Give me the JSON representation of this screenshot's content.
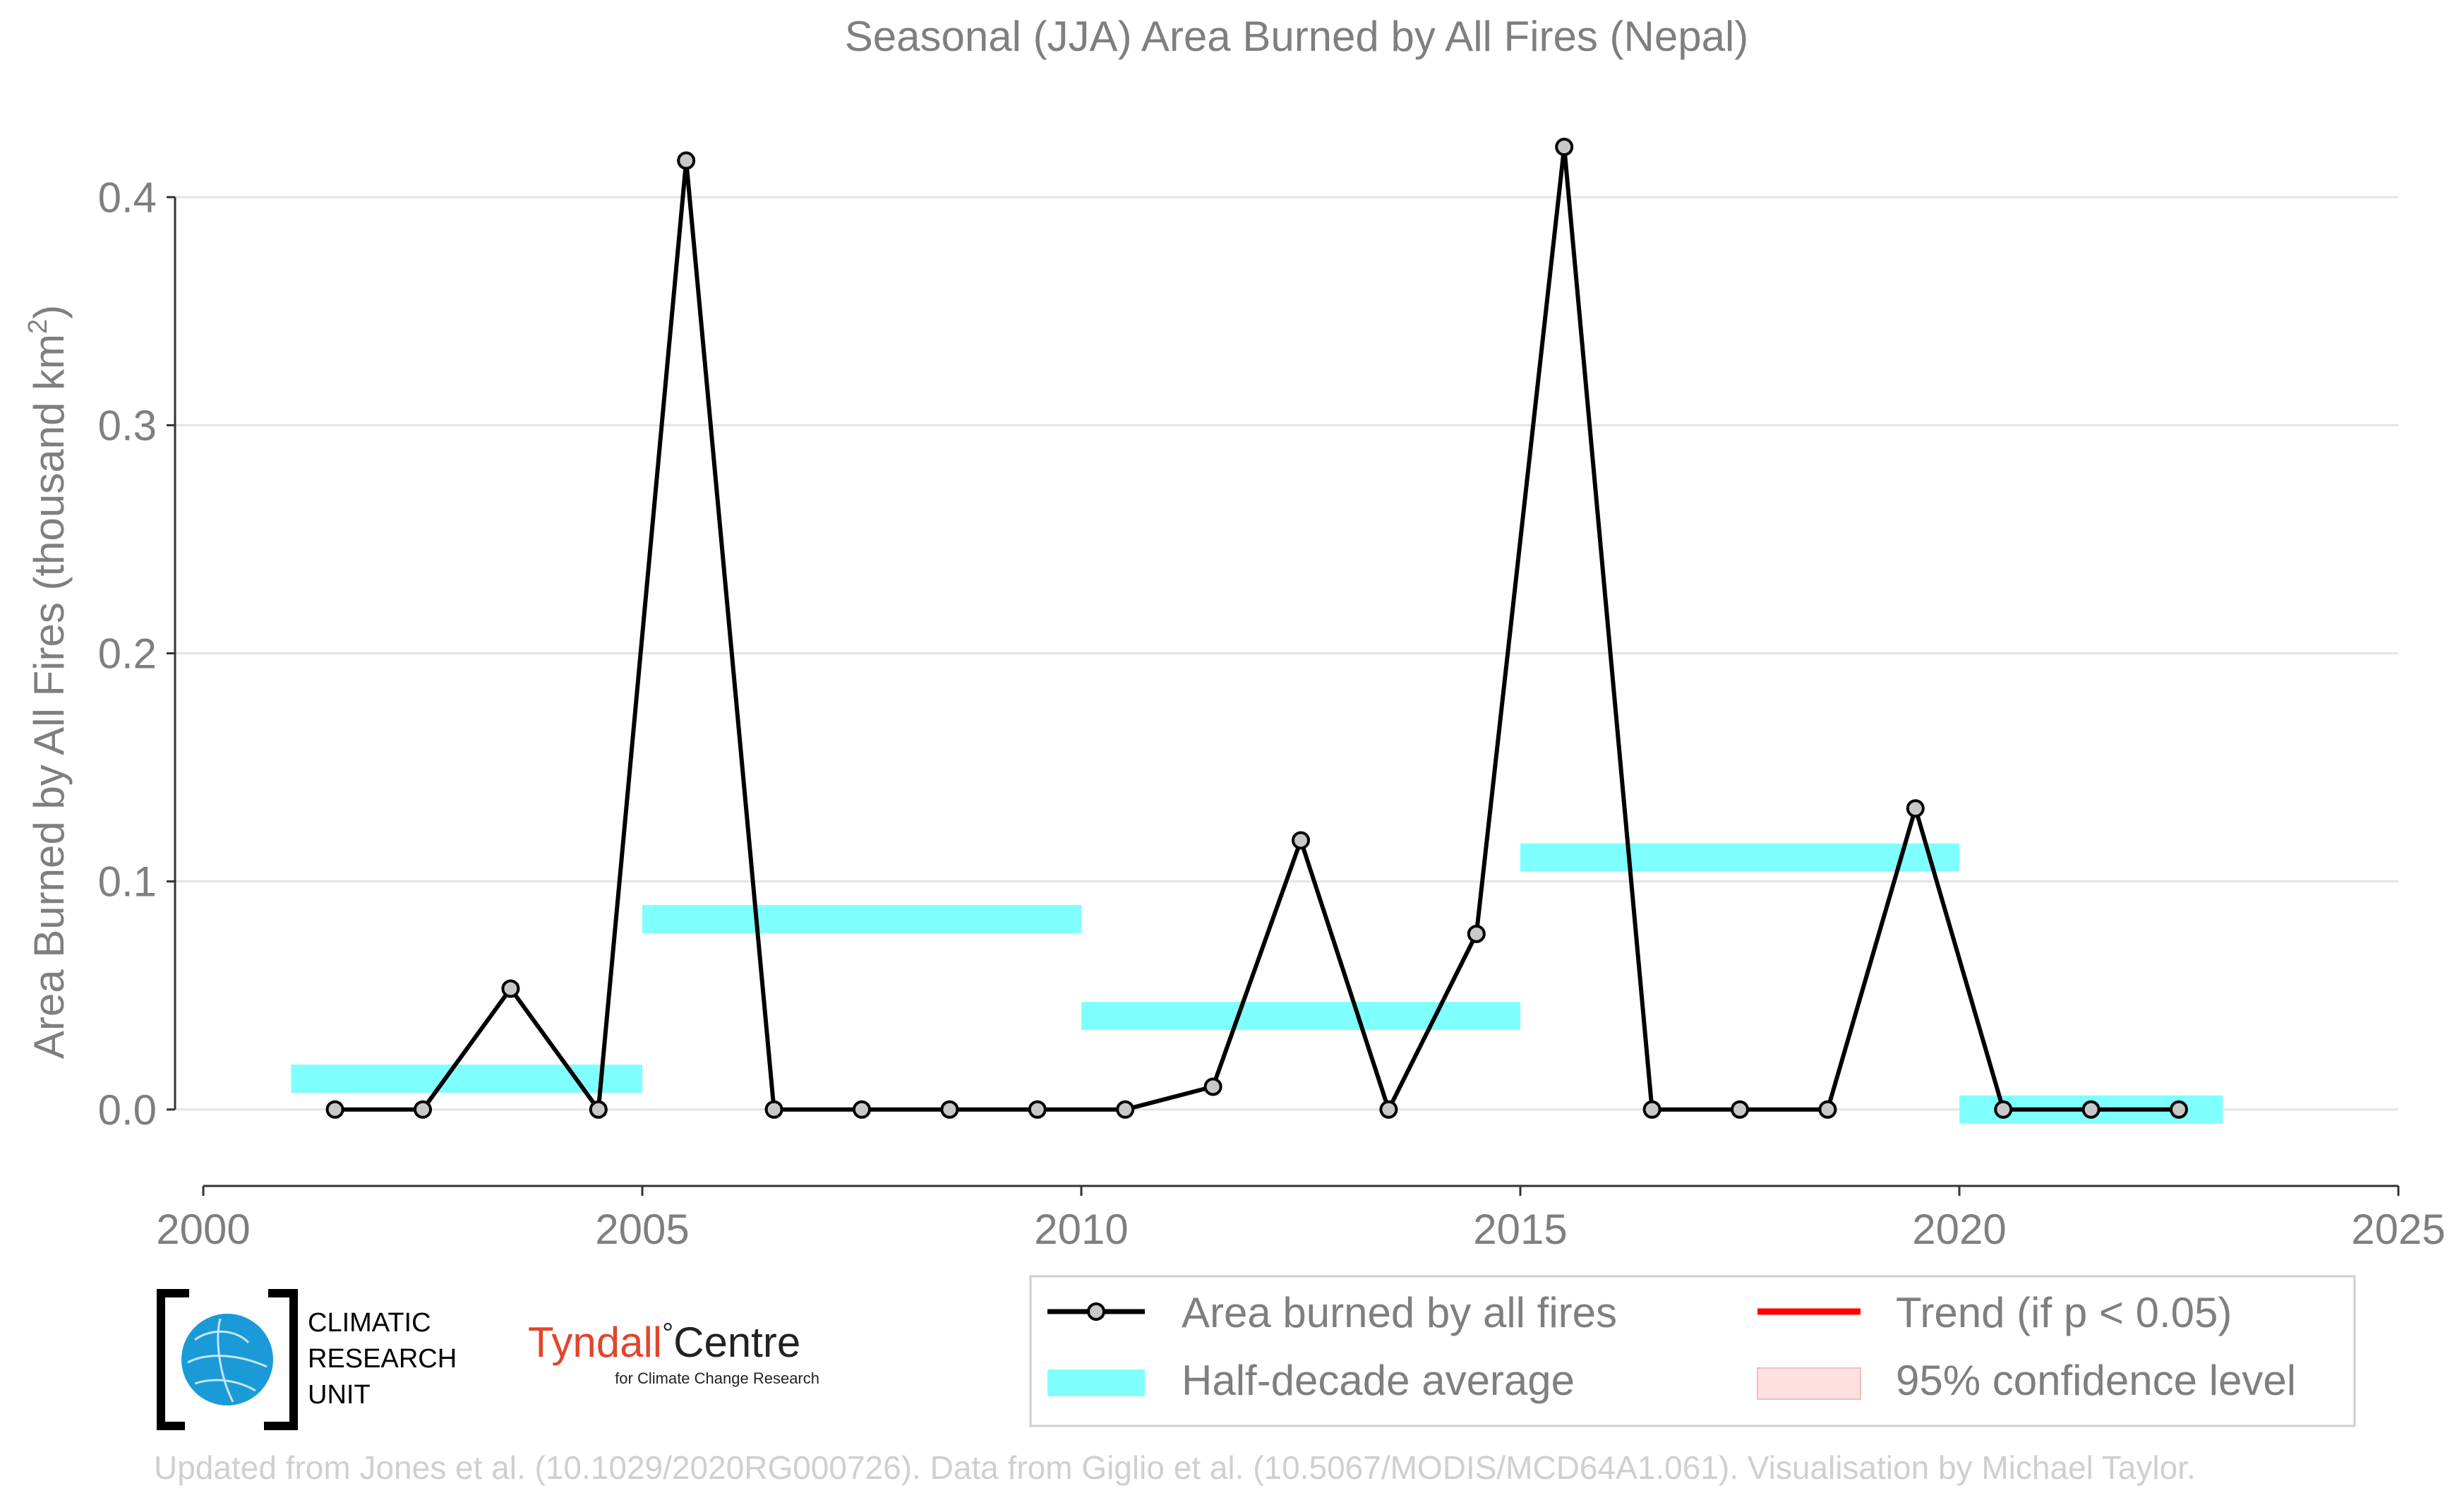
{
  "chart_data": {
    "type": "line",
    "title": "Seasonal (JJA) Area Burned by All Fires (Nepal)",
    "ylabel": "Area Burned by All Fires (thousand km",
    "ylabel_sup": "2",
    "ylabel_close": ")",
    "xlim": [
      2000,
      2025
    ],
    "ylim": [
      -0.0335,
      0.44
    ],
    "x_ticks": [
      2000,
      2005,
      2010,
      2015,
      2020,
      2025
    ],
    "x_tick_labels": [
      "2000",
      "2005",
      "2010",
      "2015",
      "2020",
      "2025"
    ],
    "y_ticks": [
      0.0,
      0.1,
      0.2,
      0.3,
      0.4
    ],
    "y_tick_labels": [
      "0.0",
      "0.1",
      "0.2",
      "0.3",
      "0.4"
    ],
    "grid": "horizontal",
    "series": [
      {
        "name": "Area burned by all fires",
        "color": "#000000",
        "marker_fill": "#c8c8c8",
        "x": [
          2001.5,
          2002.5,
          2003.5,
          2004.5,
          2005.5,
          2006.5,
          2007.5,
          2008.5,
          2009.5,
          2010.5,
          2011.5,
          2012.5,
          2013.5,
          2014.5,
          2015.5,
          2016.5,
          2017.5,
          2018.5,
          2019.5,
          2020.5,
          2021.5,
          2022.5
        ],
        "values": [
          0.0,
          0.0,
          0.053,
          0.0,
          0.416,
          0.0,
          0.0,
          0.0,
          0.0,
          0.0,
          0.01,
          0.118,
          0.0,
          0.077,
          0.422,
          0.0,
          0.0,
          0.0,
          0.132,
          0.0,
          0.0,
          0.0
        ]
      }
    ],
    "half_decade_average": {
      "name": "Half-decade average",
      "color": "#80ffff",
      "segments": [
        {
          "x0": 2001,
          "x1": 2005,
          "value": 0.0135
        },
        {
          "x0": 2005,
          "x1": 2010,
          "value": 0.0835
        },
        {
          "x0": 2010,
          "x1": 2015,
          "value": 0.041
        },
        {
          "x0": 2015,
          "x1": 2020,
          "value": 0.1105
        },
        {
          "x0": 2020,
          "x1": 2023,
          "value": 0.0
        }
      ]
    },
    "legend": {
      "placement": "bottom-right",
      "entries": [
        {
          "label": "Area burned by all fires",
          "kind": "line-marker",
          "color": "#000000"
        },
        {
          "label": "Trend (if p < 0.05)",
          "kind": "line",
          "color": "#ff0000"
        },
        {
          "label": "Half-decade average",
          "kind": "band",
          "color": "#80ffff"
        },
        {
          "label": "95% confidence level",
          "kind": "band",
          "color": "#ffe0e0"
        }
      ]
    }
  },
  "logos": {
    "cru_line1": "CLIMATIC",
    "cru_line2": "RESEARCH",
    "cru_line3": "UNIT",
    "tyndall_main": "Tyndall",
    "tyndall_degree": "°",
    "tyndall_centre": "Centre",
    "tyndall_sub": "for Climate Change Research"
  },
  "credit": "Updated from Jones et al. (10.1029/2020RG000726). Data from Giglio et al. (10.5067/MODIS/MCD64A1.061). Visualisation by Michael Taylor."
}
